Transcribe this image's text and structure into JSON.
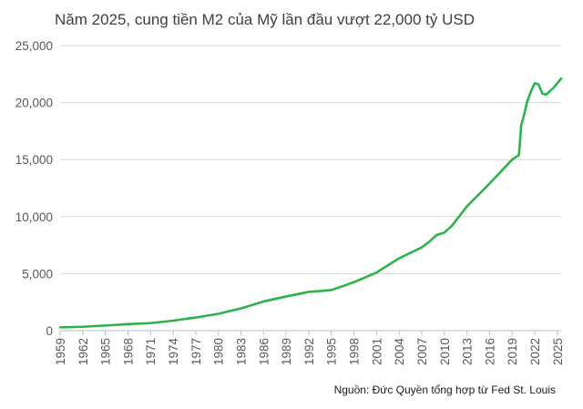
{
  "chart_data": {
    "type": "line",
    "title": "Năm 2025, cung tiền M2 của Mỹ lần đầu vượt 22,000 tỷ USD",
    "source": "Nguồn: Đức Quyền tổng hợp từ Fed St. Louis",
    "xlabel": "",
    "ylabel": "",
    "xlim": [
      1959,
      2025.5
    ],
    "ylim": [
      0,
      25000
    ],
    "y_ticks": [
      {
        "value": 0,
        "label": "0"
      },
      {
        "value": 5000,
        "label": "5,000"
      },
      {
        "value": 10000,
        "label": "10,000"
      },
      {
        "value": 15000,
        "label": "15,000"
      },
      {
        "value": 20000,
        "label": "20,000"
      },
      {
        "value": 25000,
        "label": "25,000"
      }
    ],
    "x_ticks": [
      {
        "value": 1959,
        "label": "1959"
      },
      {
        "value": 1962,
        "label": "1962"
      },
      {
        "value": 1965,
        "label": "1965"
      },
      {
        "value": 1968,
        "label": "1968"
      },
      {
        "value": 1971,
        "label": "1971"
      },
      {
        "value": 1974,
        "label": "1974"
      },
      {
        "value": 1977,
        "label": "1977"
      },
      {
        "value": 1980,
        "label": "1980"
      },
      {
        "value": 1983,
        "label": "1983"
      },
      {
        "value": 1986,
        "label": "1986"
      },
      {
        "value": 1989,
        "label": "1989"
      },
      {
        "value": 1992,
        "label": "1992"
      },
      {
        "value": 1995,
        "label": "1995"
      },
      {
        "value": 1998,
        "label": "1998"
      },
      {
        "value": 2001,
        "label": "2001"
      },
      {
        "value": 2004,
        "label": "2004"
      },
      {
        "value": 2007,
        "label": "2007"
      },
      {
        "value": 2010,
        "label": "2010"
      },
      {
        "value": 2013,
        "label": "2013"
      },
      {
        "value": 2016,
        "label": "2016"
      },
      {
        "value": 2019,
        "label": "2019"
      },
      {
        "value": 2022,
        "label": "2022"
      },
      {
        "value": 2025,
        "label": "2025"
      }
    ],
    "grid": "horizontal",
    "series": [
      {
        "color": "#2db34a",
        "x": [
          1959,
          1962,
          1965,
          1968,
          1971,
          1974,
          1977,
          1980,
          1983,
          1986,
          1989,
          1992,
          1995,
          1998,
          2001,
          2004,
          2007,
          2008,
          2009,
          2010,
          2011,
          2013,
          2016,
          2019,
          2019.9,
          2020.2,
          2020.5,
          2021,
          2021.5,
          2022,
          2022.5,
          2023,
          2023.5,
          2024,
          2024.5,
          2025,
          2025.5
        ],
        "y": [
          290,
          340,
          450,
          570,
          660,
          880,
          1150,
          1480,
          1950,
          2560,
          3000,
          3400,
          3560,
          4250,
          5100,
          6350,
          7300,
          7800,
          8400,
          8600,
          9200,
          10900,
          12900,
          15000,
          15400,
          18000,
          18700,
          20100,
          21000,
          21700,
          21600,
          20800,
          20700,
          21000,
          21300,
          21700,
          22100
        ]
      }
    ]
  }
}
